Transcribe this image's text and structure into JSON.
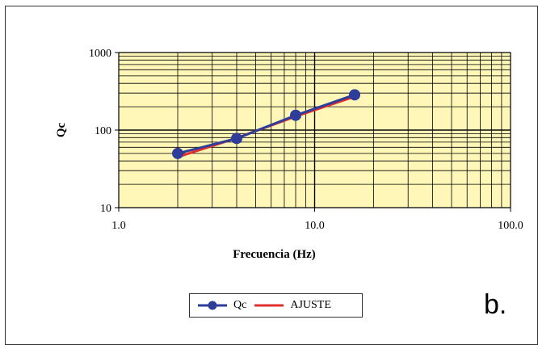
{
  "panel_label": "b.",
  "colors": {
    "plot_bg": "#fff7b8",
    "grid": "#000000",
    "qc_series": "#2e3d99",
    "fit_series": "#e03030"
  },
  "chart_data": {
    "type": "line",
    "xlabel": "Frecuencia (Hz)",
    "ylabel": "Qc",
    "xscale": "log",
    "yscale": "log",
    "xlim": [
      1.0,
      100.0
    ],
    "ylim": [
      10,
      1000
    ],
    "xticks": [
      "1.0",
      "10.0",
      "100.0"
    ],
    "yticks": [
      "10",
      "100",
      "1000"
    ],
    "grid": true,
    "legend_position": "bottom",
    "series": [
      {
        "name": "Qc",
        "color": "#2e3d99",
        "marker": "circle",
        "x": [
          2,
          4,
          8,
          16
        ],
        "y": [
          50,
          78,
          155,
          285
        ]
      },
      {
        "name": "AJUSTE",
        "color": "#e03030",
        "marker": "none",
        "x": [
          2,
          4,
          8,
          16
        ],
        "y": [
          45,
          79,
          150,
          270
        ]
      }
    ]
  }
}
